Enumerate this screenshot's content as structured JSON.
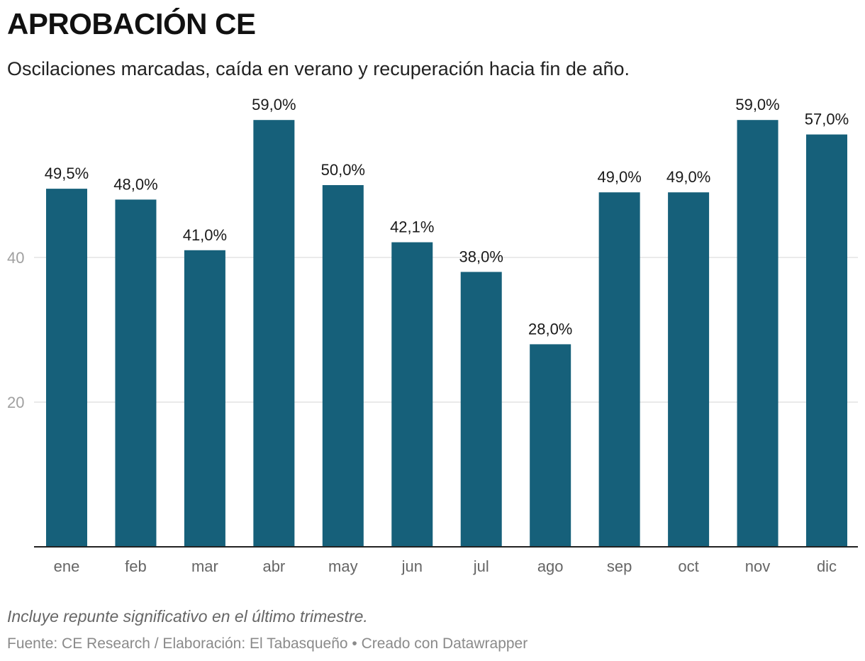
{
  "chart_data": {
    "type": "bar",
    "title": "APROBACIÓN CE",
    "subtitle": "Oscilaciones marcadas, caída en verano y recuperación hacia fin de año.",
    "categories": [
      "ene",
      "feb",
      "mar",
      "abr",
      "may",
      "jun",
      "jul",
      "ago",
      "sep",
      "oct",
      "nov",
      "dic"
    ],
    "values": [
      49.5,
      48.0,
      41.0,
      59.0,
      50.0,
      42.1,
      38.0,
      28.0,
      49.0,
      49.0,
      59.0,
      57.0
    ],
    "data_labels": [
      "49,5%",
      "48,0%",
      "41,0%",
      "59,0%",
      "50,0%",
      "42,1%",
      "38,0%",
      "28,0%",
      "49,0%",
      "49,0%",
      "59,0%",
      "57,0%"
    ],
    "yticks": [
      20,
      40
    ],
    "ylim": [
      0,
      59
    ],
    "grid": true,
    "bar_color": "#16607a",
    "note": "Incluye repunte significativo en el último trimestre.",
    "source": "Fuente: CE Research / Elaboración: El Tabasqueño • Creado con Datawrapper"
  }
}
